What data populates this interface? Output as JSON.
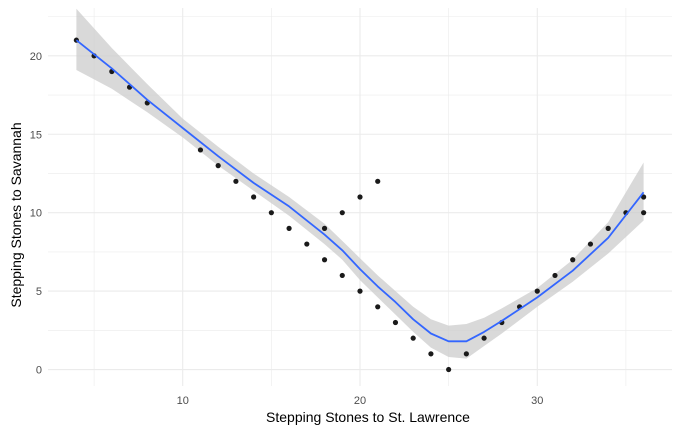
{
  "chart_data": {
    "type": "scatter",
    "title": "",
    "xlabel": "Stepping Stones to St. Lawrence",
    "ylabel": "Stepping Stones to Savannah",
    "xlim": [
      2.4,
      37.6
    ],
    "ylim": [
      -1.05,
      23.05
    ],
    "x_ticks": [
      10,
      20,
      30
    ],
    "x_minor_ticks": [
      5,
      15,
      25,
      35
    ],
    "y_ticks": [
      0,
      5,
      10,
      15,
      20
    ],
    "y_minor_ticks": [
      2.5,
      7.5,
      12.5,
      17.5,
      22.5
    ],
    "grid": true,
    "legend": "none",
    "colors": {
      "points": "#1a1a1a",
      "smooth": "#3366ff",
      "ribbon": "#cccccc",
      "grid": "#ebebeb"
    },
    "points": [
      {
        "x": 4,
        "y": 21
      },
      {
        "x": 5,
        "y": 20
      },
      {
        "x": 6,
        "y": 19
      },
      {
        "x": 7,
        "y": 18
      },
      {
        "x": 8,
        "y": 17
      },
      {
        "x": 11,
        "y": 14
      },
      {
        "x": 12,
        "y": 13
      },
      {
        "x": 13,
        "y": 12
      },
      {
        "x": 14,
        "y": 11
      },
      {
        "x": 15,
        "y": 10
      },
      {
        "x": 16,
        "y": 9
      },
      {
        "x": 17,
        "y": 8
      },
      {
        "x": 18,
        "y": 7
      },
      {
        "x": 18,
        "y": 9
      },
      {
        "x": 19,
        "y": 6
      },
      {
        "x": 19,
        "y": 10
      },
      {
        "x": 20,
        "y": 5
      },
      {
        "x": 20,
        "y": 11
      },
      {
        "x": 21,
        "y": 4
      },
      {
        "x": 21,
        "y": 12
      },
      {
        "x": 22,
        "y": 3
      },
      {
        "x": 23,
        "y": 2
      },
      {
        "x": 24,
        "y": 1
      },
      {
        "x": 25,
        "y": 0
      },
      {
        "x": 26,
        "y": 1
      },
      {
        "x": 27,
        "y": 2
      },
      {
        "x": 28,
        "y": 3
      },
      {
        "x": 29,
        "y": 4
      },
      {
        "x": 30,
        "y": 5
      },
      {
        "x": 31,
        "y": 6
      },
      {
        "x": 32,
        "y": 7
      },
      {
        "x": 33,
        "y": 8
      },
      {
        "x": 34,
        "y": 9
      },
      {
        "x": 35,
        "y": 10
      },
      {
        "x": 36,
        "y": 11
      },
      {
        "x": 36,
        "y": 10
      }
    ],
    "smooth": {
      "x": [
        4,
        6,
        8,
        10,
        12,
        14,
        16,
        18,
        19,
        20,
        21,
        22,
        23,
        24,
        25,
        26,
        27,
        28,
        30,
        32,
        34,
        36
      ],
      "y": [
        21,
        19.2,
        17.2,
        15.4,
        13.6,
        11.9,
        10.4,
        8.6,
        7.6,
        6.4,
        5.3,
        4.3,
        3.2,
        2.3,
        1.8,
        1.8,
        2.4,
        3.1,
        4.6,
        6.3,
        8.4,
        11.3
      ],
      "lower": [
        19.1,
        17.9,
        16.4,
        14.8,
        13.0,
        11.4,
        9.8,
        8.0,
        7.0,
        5.7,
        4.6,
        3.5,
        2.4,
        1.4,
        0.8,
        0.7,
        1.5,
        2.3,
        4.0,
        5.6,
        7.4,
        9.5
      ],
      "upper": [
        23.0,
        20.5,
        18.2,
        16.0,
        14.2,
        12.5,
        11.0,
        9.3,
        8.2,
        7.1,
        6.0,
        5.0,
        4.0,
        3.2,
        2.8,
        2.9,
        3.3,
        3.9,
        5.2,
        7.0,
        9.4,
        13.2
      ]
    }
  }
}
